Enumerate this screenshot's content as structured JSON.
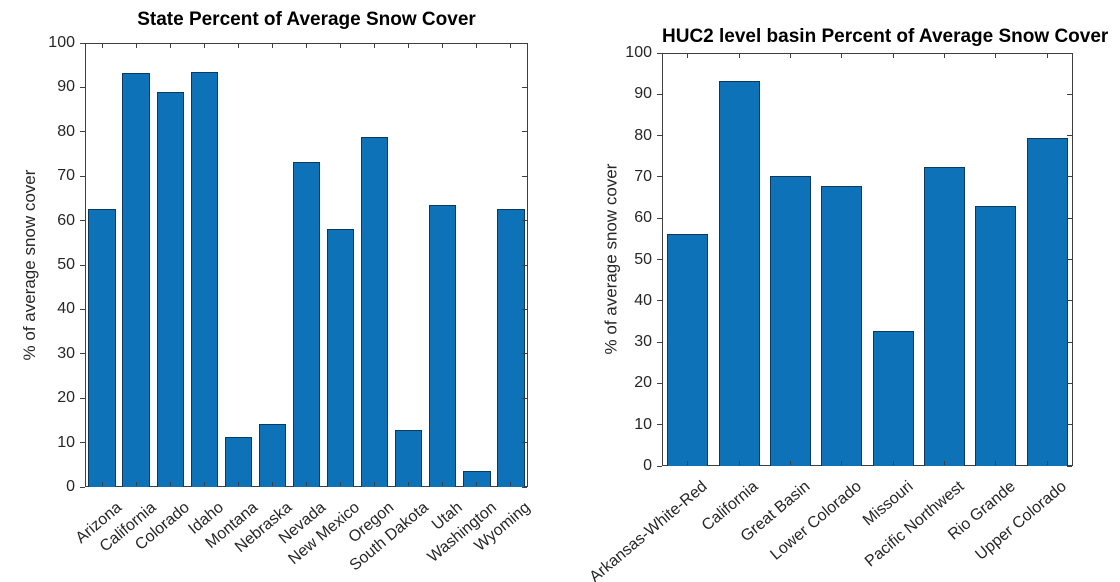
{
  "figure": {
    "background_color": "#ffffff",
    "axis_color": "#3f3f3f",
    "tick_text_color": "#262626",
    "title_color": "#000000",
    "bar_color": "#0e72b9",
    "bar_edge_color": "#0d3a5c"
  },
  "chart_data": [
    {
      "type": "bar",
      "title": "State Percent of Average Snow Cover",
      "xlabel": "",
      "ylabel": "% of average snow cover",
      "categories": [
        "Arizona",
        "California",
        "Colorado",
        "Idaho",
        "Montana",
        "Nebraska",
        "Nevada",
        "New Mexico",
        "Oregon",
        "South Dakota",
        "Utah",
        "Washington",
        "Wyoming"
      ],
      "values": [
        62.7,
        93.3,
        89.0,
        93.5,
        11.2,
        14.3,
        73.2,
        58.0,
        78.9,
        12.9,
        63.5,
        3.7,
        62.7
      ],
      "ylim": [
        0,
        100
      ],
      "ytick_step": 10,
      "ytick_labels": [
        "0",
        "10",
        "20",
        "30",
        "40",
        "50",
        "60",
        "70",
        "80",
        "90",
        "100"
      ],
      "xtick_angle_deg": 40,
      "grid": false,
      "legend": "none",
      "bar_color": "#0e72b9",
      "bar_edge_color": "#0d3a5c"
    },
    {
      "type": "bar",
      "title": "HUC2 level basin Percent of Average Snow Cover",
      "xlabel": "",
      "ylabel": "% of average snow cover",
      "categories": [
        "Arkansas-White-Red",
        "California",
        "Great Basin",
        "Lower Colorado",
        "Missouri",
        "Pacific Northwest",
        "Rio Grande",
        "Upper Colorado"
      ],
      "values": [
        56.2,
        93.2,
        70.2,
        67.7,
        32.6,
        72.3,
        63.0,
        79.5
      ],
      "ylim": [
        0,
        100
      ],
      "ytick_step": 10,
      "ytick_labels": [
        "0",
        "10",
        "20",
        "30",
        "40",
        "50",
        "60",
        "70",
        "80",
        "90",
        "100"
      ],
      "xtick_angle_deg": 40,
      "grid": false,
      "legend": "none",
      "bar_color": "#0e72b9",
      "bar_edge_color": "#0d3a5c"
    }
  ]
}
